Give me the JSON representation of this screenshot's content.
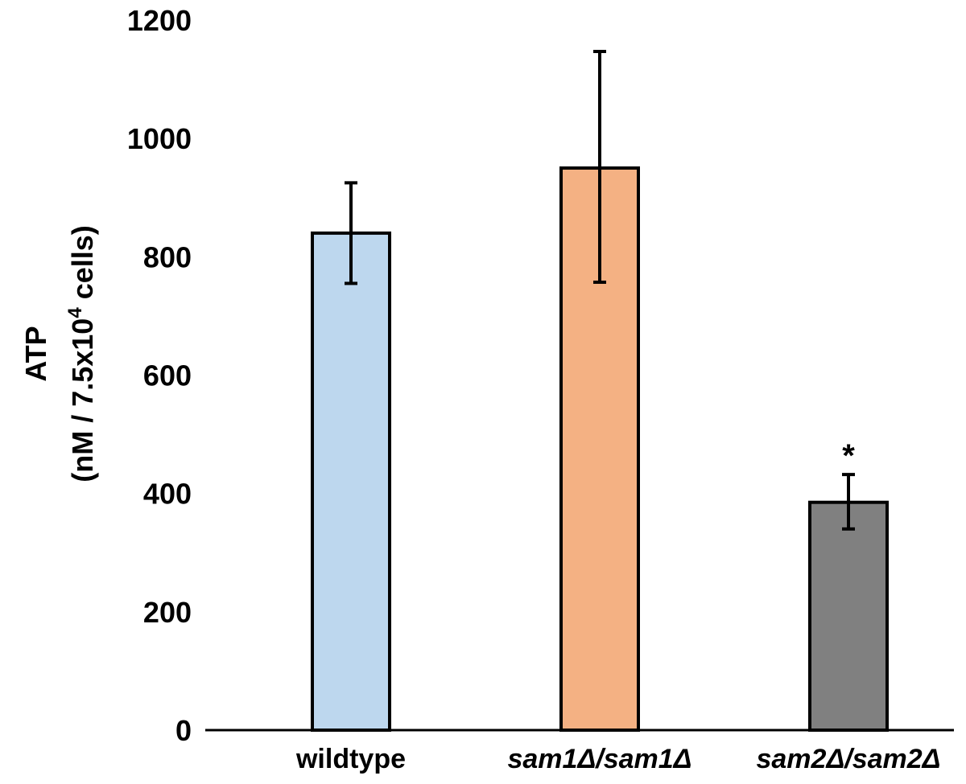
{
  "chart_data": {
    "type": "bar",
    "title": "",
    "xlabel": "",
    "ylabel_line1": "ATP",
    "ylabel_line2_prefix": "(nM / 7.5x10",
    "ylabel_line2_sup": "4",
    "ylabel_line2_suffix": " cells)",
    "ylim": [
      0,
      1200
    ],
    "yticks": [
      0,
      200,
      400,
      600,
      800,
      1000,
      1200
    ],
    "ytick_labels": [
      "0",
      "200",
      "400",
      "600",
      "800",
      "1000",
      "1200"
    ],
    "grid": false,
    "legend": "none",
    "categories": [
      "wildtype",
      "sam1Δ/sam1Δ",
      "sam2Δ/sam2Δ"
    ],
    "category_italic": [
      false,
      true,
      true
    ],
    "values": [
      840,
      950,
      385
    ],
    "error_bars": [
      {
        "low": 755,
        "high": 925
      },
      {
        "low": 757,
        "high": 1147
      },
      {
        "low": 340,
        "high": 432
      }
    ],
    "colors": [
      "#bdd7ee",
      "#f4b183",
      "#808080"
    ],
    "annotations": [
      "",
      "",
      "*"
    ]
  }
}
